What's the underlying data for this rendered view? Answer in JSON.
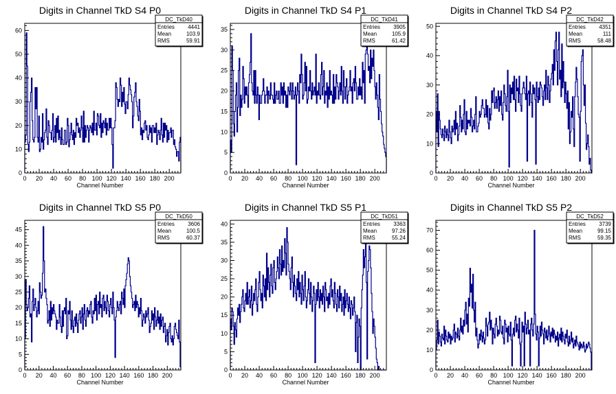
{
  "chart_data": [
    {
      "type": "histogram",
      "id": "s4p0",
      "title": "Digits in Channel TkD S4 P0",
      "xlabel": "Channel Number",
      "stats": {
        "name": "DC_TkD40",
        "entries": "4441",
        "mean": "103.9",
        "rms": "59.91"
      },
      "xlim": [
        0,
        216
      ],
      "ylim": [
        0,
        63
      ],
      "yticks": [
        0,
        10,
        20,
        30,
        40,
        50,
        60
      ],
      "xticks": [
        0,
        20,
        40,
        60,
        80,
        100,
        120,
        140,
        160,
        180,
        200
      ],
      "values": [
        13,
        16,
        59,
        45,
        12,
        9,
        13,
        30,
        34,
        40,
        22,
        14,
        13,
        15,
        36,
        27,
        36,
        15,
        13,
        24,
        9,
        10,
        15,
        13,
        25,
        10,
        14,
        17,
        18,
        27,
        15,
        12,
        22,
        20,
        17,
        17,
        14,
        18,
        25,
        13,
        15,
        20,
        13,
        23,
        17,
        24,
        14,
        18,
        15,
        12,
        19,
        14,
        12,
        12,
        18,
        18,
        12,
        13,
        23,
        20,
        11,
        14,
        17,
        21,
        16,
        14,
        18,
        12,
        17,
        15,
        23,
        20,
        21,
        17,
        19,
        15,
        18,
        24,
        19,
        13,
        26,
        13,
        20,
        15,
        18,
        20,
        19,
        13,
        18,
        20,
        19,
        17,
        21,
        16,
        26,
        18,
        18,
        21,
        16,
        25,
        24,
        20,
        19,
        25,
        15,
        21,
        17,
        22,
        21,
        19,
        23,
        16,
        21,
        18,
        18,
        23,
        19,
        23,
        19,
        12,
        2,
        19,
        19,
        22,
        38,
        36,
        31,
        28,
        31,
        30,
        40,
        37,
        28,
        34,
        30,
        36,
        29,
        25,
        30,
        30,
        27,
        33,
        40,
        37,
        35,
        33,
        30,
        19,
        24,
        32,
        34,
        38,
        30,
        28,
        24,
        22,
        31,
        26,
        16,
        19,
        14,
        18,
        17,
        21,
        22,
        18,
        20,
        15,
        14,
        16,
        20,
        17,
        19,
        13,
        20,
        20,
        17,
        19,
        17,
        21,
        12,
        16,
        18,
        17,
        14,
        18,
        23,
        16,
        13,
        21,
        15,
        21,
        18,
        20,
        13,
        18,
        14,
        17,
        17,
        19,
        15,
        18,
        18,
        12,
        14,
        11,
        10,
        7,
        9,
        9,
        5,
        13,
        15
      ]
    },
    {
      "type": "histogram",
      "id": "s4p1",
      "title": "Digits in Channel TkD S4 P1",
      "xlabel": "Channel Number",
      "stats": {
        "name": "DC_TkD41",
        "entries": "3905",
        "mean": "105.9",
        "rms": "61.42"
      },
      "xlim": [
        0,
        216
      ],
      "ylim": [
        0,
        36.5
      ],
      "yticks": [
        0,
        5,
        10,
        15,
        20,
        25,
        30,
        35
      ],
      "xticks": [
        0,
        20,
        40,
        60,
        80,
        100,
        120,
        140,
        160,
        180,
        200
      ],
      "values": [
        8,
        5,
        31,
        25,
        12,
        9,
        15,
        19,
        22,
        10,
        16,
        25,
        28,
        14,
        19,
        16,
        18,
        26,
        23,
        17,
        21,
        19,
        21,
        19,
        16,
        22,
        24,
        27,
        34,
        22,
        20,
        19,
        25,
        17,
        25,
        19,
        17,
        21,
        19,
        13,
        19,
        17,
        17,
        19,
        20,
        23,
        20,
        17,
        19,
        19,
        21,
        17,
        20,
        19,
        18,
        22,
        19,
        19,
        18,
        17,
        22,
        17,
        19,
        20,
        18,
        18,
        20,
        17,
        17,
        22,
        19,
        21,
        17,
        22,
        19,
        20,
        16,
        19,
        16,
        21,
        20,
        19,
        22,
        20,
        18,
        22,
        20,
        18,
        19,
        21,
        2,
        19,
        22,
        20,
        17,
        24,
        22,
        29,
        24,
        18,
        19,
        22,
        27,
        20,
        26,
        17,
        18,
        21,
        20,
        25,
        20,
        18,
        22,
        19,
        20,
        21,
        19,
        29,
        17,
        20,
        19,
        22,
        19,
        18,
        24,
        27,
        19,
        21,
        25,
        17,
        20,
        19,
        22,
        16,
        21,
        18,
        25,
        19,
        20,
        19,
        17,
        24,
        17,
        21,
        18,
        24,
        22,
        21,
        18,
        20,
        22,
        19,
        26,
        20,
        17,
        25,
        21,
        18,
        21,
        23,
        17,
        19,
        20,
        21,
        25,
        20,
        21,
        17,
        22,
        23,
        20,
        26,
        22,
        18,
        18,
        21,
        19,
        23,
        19,
        21,
        18,
        27,
        22,
        25,
        17,
        29,
        30,
        32,
        29,
        25,
        26,
        22,
        30,
        23,
        28,
        26,
        30,
        25,
        21,
        18,
        22,
        19,
        16,
        13,
        24,
        18,
        15,
        12,
        10,
        9,
        7,
        6,
        5,
        4
      ]
    },
    {
      "type": "histogram",
      "id": "s4p2",
      "title": "Digits in Channel TkD S4 P2",
      "xlabel": "Channel Number",
      "stats": {
        "name": "DC_TkD42",
        "entries": "4351",
        "mean": "111",
        "rms": "58.48"
      },
      "xlim": [
        0,
        216
      ],
      "ylim": [
        0,
        51
      ],
      "yticks": [
        0,
        10,
        20,
        30,
        40,
        50
      ],
      "xticks": [
        0,
        20,
        40,
        60,
        80,
        100,
        120,
        140,
        160,
        180,
        200
      ],
      "values": [
        21,
        14,
        27,
        9,
        21,
        18,
        15,
        13,
        12,
        15,
        13,
        11,
        16,
        14,
        12,
        15,
        13,
        11,
        18,
        14,
        12,
        10,
        16,
        14,
        15,
        18,
        13,
        21,
        15,
        17,
        11,
        13,
        16,
        23,
        19,
        14,
        18,
        15,
        20,
        25,
        14,
        13,
        21,
        15,
        18,
        17,
        18,
        16,
        22,
        19,
        14,
        16,
        18,
        15,
        20,
        26,
        14,
        14,
        16,
        17,
        21,
        19,
        20,
        23,
        25,
        22,
        22,
        19,
        20,
        25,
        19,
        23,
        17,
        15,
        22,
        18,
        20,
        28,
        24,
        28,
        29,
        22,
        24,
        26,
        22,
        25,
        28,
        21,
        26,
        23,
        28,
        20,
        18,
        24,
        30,
        27,
        23,
        21,
        26,
        35,
        21,
        2,
        30,
        24,
        29,
        27,
        31,
        25,
        33,
        25,
        21,
        32,
        28,
        29,
        24,
        33,
        27,
        23,
        21,
        27,
        29,
        31,
        29,
        27,
        25,
        33,
        4,
        27,
        28,
        23,
        31,
        27,
        24,
        19,
        30,
        27,
        29,
        25,
        3,
        31,
        26,
        24,
        29,
        25,
        31,
        30,
        29,
        26,
        23,
        28,
        30,
        25,
        35,
        29,
        25,
        33,
        30,
        24,
        28,
        32,
        34,
        37,
        30,
        42,
        35,
        45,
        48,
        38,
        30,
        42,
        48,
        32,
        35,
        26,
        44,
        29,
        38,
        31,
        24,
        31,
        27,
        22,
        28,
        15,
        24,
        10,
        14,
        21,
        19,
        26,
        15,
        9,
        26,
        31,
        36,
        32,
        26,
        20,
        19,
        4,
        21,
        38,
        40,
        42,
        30,
        23,
        30,
        17,
        8,
        10,
        13,
        9,
        3,
        5,
        1,
        0
      ]
    },
    {
      "type": "histogram",
      "id": "s5p0",
      "title": "Digits in Channel TkD S5 P0",
      "xlabel": "Channel Number",
      "stats": {
        "name": "DC_TkD50",
        "entries": "3606",
        "mean": "100.5",
        "rms": "60.37"
      },
      "xlim": [
        0,
        219
      ],
      "ylim": [
        0,
        48
      ],
      "yticks": [
        0,
        5,
        10,
        15,
        20,
        25,
        30,
        35,
        40,
        45
      ],
      "xticks": [
        0,
        20,
        40,
        60,
        80,
        100,
        120,
        140,
        160,
        180,
        200
      ],
      "values": [
        10,
        29,
        21,
        19,
        20,
        23,
        27,
        17,
        18,
        9,
        22,
        26,
        19,
        21,
        23,
        20,
        17,
        19,
        22,
        18,
        28,
        25,
        23,
        24,
        31,
        46,
        35,
        25,
        26,
        23,
        21,
        15,
        16,
        19,
        14,
        22,
        16,
        20,
        18,
        21,
        19,
        18,
        17,
        13,
        16,
        15,
        15,
        21,
        17,
        14,
        12,
        19,
        14,
        19,
        20,
        18,
        23,
        10,
        11,
        19,
        18,
        22,
        16,
        13,
        19,
        14,
        12,
        16,
        17,
        14,
        18,
        15,
        12,
        16,
        18,
        19,
        15,
        17,
        20,
        13,
        18,
        21,
        16,
        14,
        19,
        20,
        17,
        19,
        18,
        21,
        22,
        17,
        15,
        19,
        18,
        23,
        19,
        24,
        16,
        21,
        22,
        18,
        25,
        20,
        21,
        17,
        23,
        24,
        19,
        22,
        20,
        18,
        24,
        22,
        19,
        17,
        21,
        23,
        20,
        18,
        25,
        20,
        16,
        4,
        17,
        19,
        22,
        20,
        19,
        21,
        22,
        18,
        25,
        23,
        21,
        26,
        20,
        27,
        29,
        31,
        34,
        36,
        35,
        30,
        27,
        25,
        23,
        20,
        21,
        22,
        19,
        24,
        20,
        22,
        21,
        17,
        20,
        18,
        23,
        19,
        14,
        16,
        18,
        17,
        15,
        19,
        17,
        18,
        20,
        16,
        12,
        14,
        15,
        19,
        16,
        18,
        13,
        20,
        17,
        14,
        16,
        19,
        15,
        17,
        13,
        18,
        14,
        16,
        17,
        12,
        14,
        15,
        9,
        11,
        13,
        8,
        12,
        14,
        15,
        10,
        9,
        11,
        8,
        10,
        14,
        15,
        13,
        12,
        11,
        10,
        16,
        9,
        1
      ]
    },
    {
      "type": "histogram",
      "id": "s5p1",
      "title": "Digits in Channel TkD S5 P1",
      "xlabel": "Channel Number",
      "stats": {
        "name": "DC_TkD51",
        "entries": "3363",
        "mean": "97.26",
        "rms": "55.24"
      },
      "xlim": [
        0,
        216
      ],
      "ylim": [
        0,
        41
      ],
      "yticks": [
        0,
        5,
        10,
        15,
        20,
        25,
        30,
        35,
        40
      ],
      "xticks": [
        0,
        20,
        40,
        60,
        80,
        100,
        120,
        140,
        160,
        180,
        200
      ],
      "values": [
        14,
        11,
        17,
        16,
        12,
        7,
        13,
        11,
        9,
        14,
        17,
        15,
        18,
        13,
        16,
        18,
        20,
        22,
        17,
        16,
        19,
        21,
        18,
        24,
        18,
        20,
        22,
        17,
        19,
        23,
        15,
        18,
        21,
        19,
        22,
        25,
        18,
        16,
        20,
        24,
        27,
        22,
        19,
        21,
        17,
        26,
        23,
        20,
        25,
        19,
        32,
        22,
        28,
        24,
        20,
        26,
        29,
        23,
        21,
        28,
        30,
        24,
        22,
        25,
        27,
        31,
        28,
        25,
        33,
        29,
        26,
        34,
        27,
        30,
        28,
        36,
        32,
        26,
        39,
        35,
        29,
        27,
        25,
        22,
        28,
        31,
        24,
        20,
        26,
        23,
        21,
        19,
        25,
        22,
        27,
        20,
        24,
        21,
        18,
        26,
        22,
        19,
        23,
        27,
        20,
        17,
        19,
        22,
        25,
        21,
        18,
        24,
        20,
        16,
        19,
        23,
        21,
        2,
        18,
        22,
        19,
        24,
        20,
        17,
        22,
        19,
        21,
        18,
        23,
        20,
        16,
        24,
        22,
        19,
        20,
        17,
        21,
        18,
        23,
        25,
        20,
        22,
        19,
        17,
        24,
        21,
        18,
        16,
        22,
        20,
        17,
        23,
        19,
        21,
        16,
        18,
        20,
        15,
        22,
        17,
        19,
        21,
        18,
        16,
        20,
        17,
        14,
        19,
        18,
        15,
        17,
        20,
        16,
        5,
        13,
        15,
        2,
        9,
        14,
        12,
        0,
        17,
        22,
        26,
        33,
        28,
        31,
        35,
        24,
        3,
        27,
        30,
        34,
        33,
        28,
        21,
        16,
        10,
        14,
        12,
        9,
        6,
        3,
        2,
        0,
        1,
        0,
        0,
        0,
        0,
        0,
        0,
        0,
        0,
        0,
        0
      ]
    },
    {
      "type": "histogram",
      "id": "s5p2",
      "title": "Digits in Channel TkD S5 P2",
      "xlabel": "Channel Number",
      "stats": {
        "name": "DC_TkD52",
        "entries": "3739",
        "mean": "99.15",
        "rms": "59.35"
      },
      "xlim": [
        0,
        216
      ],
      "ylim": [
        0,
        75
      ],
      "yticks": [
        0,
        10,
        20,
        30,
        40,
        50,
        60,
        70
      ],
      "xticks": [
        0,
        20,
        40,
        60,
        80,
        100,
        120,
        140,
        160,
        180,
        200
      ],
      "values": [
        10,
        15,
        25,
        13,
        19,
        17,
        14,
        12,
        18,
        16,
        15,
        22,
        13,
        20,
        17,
        15,
        14,
        19,
        16,
        18,
        13,
        17,
        15,
        16,
        20,
        23,
        14,
        19,
        18,
        16,
        21,
        17,
        15,
        20,
        26,
        19,
        22,
        18,
        25,
        22,
        30,
        34,
        23,
        28,
        19,
        36,
        32,
        51,
        39,
        43,
        31,
        48,
        30,
        24,
        34,
        17,
        21,
        15,
        11,
        13,
        18,
        15,
        20,
        17,
        14,
        19,
        16,
        13,
        15,
        26,
        22,
        17,
        23,
        24,
        29,
        20,
        25,
        21,
        13,
        21,
        18,
        16,
        23,
        26,
        22,
        17,
        20,
        18,
        27,
        25,
        19,
        18,
        22,
        16,
        13,
        25,
        23,
        19,
        21,
        14,
        22,
        18,
        17,
        24,
        15,
        2,
        18,
        21,
        17,
        25,
        27,
        19,
        23,
        20,
        16,
        26,
        13,
        2,
        14,
        24,
        19,
        22,
        2,
        29,
        23,
        18,
        21,
        25,
        18,
        20,
        2,
        23,
        26,
        20,
        17,
        23,
        70,
        28,
        18,
        15,
        22,
        19,
        2,
        16,
        22,
        17,
        24,
        20,
        18,
        13,
        21,
        19,
        16,
        20,
        15,
        17,
        22,
        18,
        14,
        19,
        17,
        21,
        16,
        20,
        18,
        14,
        17,
        15,
        19,
        12,
        16,
        18,
        15,
        21,
        14,
        19,
        17,
        15,
        13,
        18,
        16,
        20,
        14,
        12,
        17,
        13,
        15,
        19,
        14,
        16,
        11,
        13,
        15,
        12,
        17,
        14,
        13,
        12,
        10,
        14,
        11,
        13,
        12,
        11,
        14,
        12,
        9,
        10,
        13,
        11,
        12,
        14,
        13,
        11,
        9,
        0
      ]
    }
  ]
}
